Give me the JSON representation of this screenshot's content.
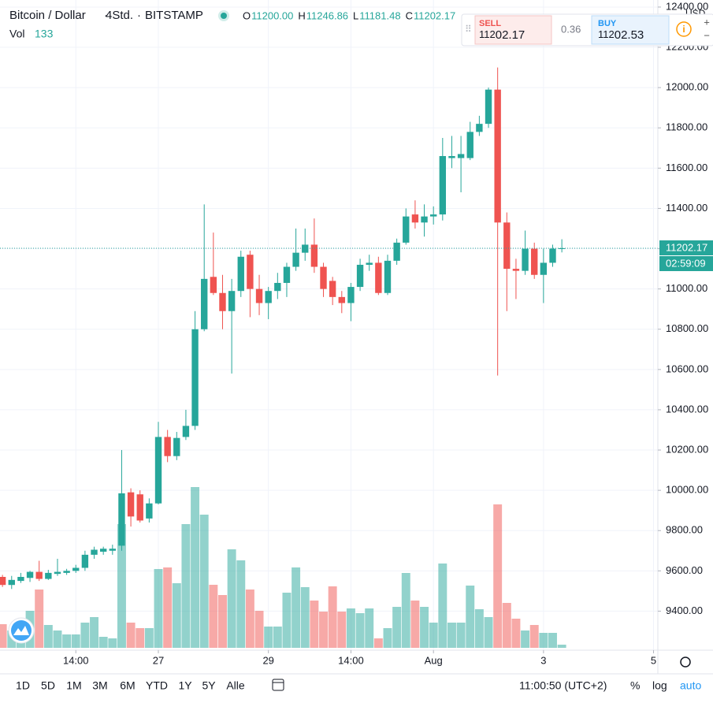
{
  "header": {
    "symbol": "Bitcoin / Dollar",
    "interval": "4Std.",
    "exchange": "BITSTAMP",
    "legend_labels": [
      "O",
      "H",
      "L",
      "C"
    ],
    "legend_values": [
      "11200.00",
      "11246.86",
      "11181.48",
      "11202.17"
    ],
    "volume_label": "Vol"
  },
  "trade_widget": {
    "sell_label": "SELL",
    "sell_price_parts": [
      "112",
      "02.17"
    ],
    "spread": 0.36,
    "buy_label": "BUY",
    "buy_price_parts": [
      "112",
      "02.53"
    ]
  },
  "chart_data": {
    "type": "candlestick",
    "open": [
      9570,
      9530,
      9550,
      9565,
      9595,
      9560,
      9585,
      9590,
      9600,
      9615,
      9680,
      9695,
      9700,
      9725,
      9990,
      9980,
      9860,
      9935,
      10265,
      10170,
      10265,
      10320,
      10800,
      11060,
      10980,
      10890,
      10990,
      11170,
      11000,
      10930,
      10990,
      11030,
      11110,
      11180,
      11220,
      11110,
      11040,
      10960,
      10930,
      11010,
      11120,
      11130,
      10980,
      11140,
      11230,
      11370,
      11330,
      11360,
      11370,
      11650,
      11650,
      11650,
      11780,
      11820,
      11990,
      11330,
      11100,
      11090,
      11200,
      11070,
      11130,
      11200
    ],
    "high": [
      9580,
      9575,
      9590,
      9600,
      9650,
      9605,
      9660,
      9610,
      9630,
      9700,
      9720,
      9720,
      9730,
      10200,
      10010,
      10000,
      9960,
      10340,
      10300,
      10290,
      10400,
      10890,
      11420,
      11280,
      11070,
      11050,
      11190,
      11190,
      11070,
      11010,
      11080,
      11130,
      11300,
      11300,
      11350,
      11130,
      11060,
      10990,
      11030,
      11150,
      11170,
      11160,
      11170,
      11250,
      11400,
      11440,
      11420,
      11410,
      11750,
      11760,
      11760,
      11830,
      11860,
      12000,
      12100,
      11380,
      11150,
      11290,
      11230,
      11200,
      11220,
      11246.86
    ],
    "low": [
      9520,
      9510,
      9540,
      9545,
      9550,
      9555,
      9575,
      9580,
      9590,
      9600,
      9660,
      9680,
      9680,
      9700,
      9820,
      9840,
      9840,
      9930,
      10140,
      10150,
      10250,
      10300,
      10790,
      10970,
      10800,
      10580,
      10960,
      10860,
      10870,
      10850,
      10950,
      10960,
      11090,
      11140,
      11080,
      10960,
      10920,
      10880,
      10840,
      10990,
      11090,
      10970,
      10970,
      11120,
      11220,
      11300,
      11260,
      11320,
      11340,
      11600,
      11480,
      11640,
      11760,
      11800,
      10570,
      10890,
      10950,
      11070,
      11050,
      10930,
      11110,
      11181.48
    ],
    "close": [
      9530,
      9555,
      9570,
      9595,
      9560,
      9590,
      9595,
      9600,
      9615,
      9680,
      9705,
      9710,
      9710,
      9985,
      9870,
      9850,
      9935,
      10265,
      10170,
      10260,
      10320,
      10800,
      11050,
      10980,
      10890,
      10990,
      11160,
      11000,
      10930,
      10990,
      11030,
      11110,
      11180,
      11220,
      11110,
      11000,
      10960,
      10930,
      11010,
      11120,
      11130,
      10980,
      11140,
      11230,
      11360,
      11330,
      11360,
      11370,
      11660,
      11660,
      11670,
      11780,
      11820,
      11990,
      11330,
      11100,
      11090,
      11200,
      11070,
      11130,
      11200,
      11202.17
    ],
    "volume": [
      990,
      726,
      1056,
      1551,
      2442,
      957,
      726,
      561,
      561,
      1056,
      1287,
      462,
      396,
      5181,
      1056,
      825,
      825,
      3300,
      3366,
      2706,
      5181,
      6732,
      5577,
      2640,
      2211,
      4125,
      3663,
      2442,
      1551,
      891,
      891,
      2310,
      3366,
      2541,
      1980,
      1518,
      2574,
      1518,
      1650,
      1452,
      1650,
      396,
      825,
      1716,
      3135,
      1980,
      1716,
      1056,
      3531,
      1056,
      1056,
      2607,
      1617,
      1287,
      6006,
      1881,
      1221,
      726,
      957,
      627,
      627,
      133
    ],
    "up_color": "#26a69a",
    "down_color": "#ef5350",
    "ylim": [
      9206,
      12435
    ],
    "yticks": [
      {
        "value": 9400,
        "label": "9400.00"
      },
      {
        "value": 9600,
        "label": "9600.00"
      },
      {
        "value": 9800,
        "label": "9800.00"
      },
      {
        "value": 10000,
        "label": "10000.00"
      },
      {
        "value": 10200,
        "label": "10200.00"
      },
      {
        "value": 10400,
        "label": "10400.00"
      },
      {
        "value": 10600,
        "label": "10600.00"
      },
      {
        "value": 10800,
        "label": "10800.00"
      },
      {
        "value": 11000,
        "label": "11000.00"
      },
      {
        "value": 11200,
        "label": "11200.00"
      },
      {
        "value": 11400,
        "label": "11400.00"
      },
      {
        "value": 11600,
        "label": "11600.00"
      },
      {
        "value": 11800,
        "label": "11800.00"
      },
      {
        "value": 12000,
        "label": "12000.00"
      },
      {
        "value": 12200,
        "label": "12200.00"
      },
      {
        "value": 12400,
        "label": "12400.00"
      }
    ],
    "xlim": [
      -0.27,
      71.47
    ],
    "xticks": [
      {
        "value": 8,
        "label": "14:00"
      },
      {
        "value": 17,
        "label": "27"
      },
      {
        "value": 29,
        "label": "29"
      },
      {
        "value": 38,
        "label": "14:00"
      },
      {
        "value": 47,
        "label": "Aug"
      },
      {
        "value": 59,
        "label": "3"
      },
      {
        "value": 71,
        "label": "5"
      }
    ],
    "currency": "USD",
    "countdown": "02:59:09",
    "grid": true
  },
  "toolbar": {
    "ranges": [
      "1D",
      "5D",
      "1M",
      "3M",
      "6M",
      "YTD",
      "1Y",
      "5Y",
      "Alle"
    ],
    "time": "11:00:50 (UTC+2)",
    "percent": "%",
    "log": "log",
    "auto": "auto"
  }
}
